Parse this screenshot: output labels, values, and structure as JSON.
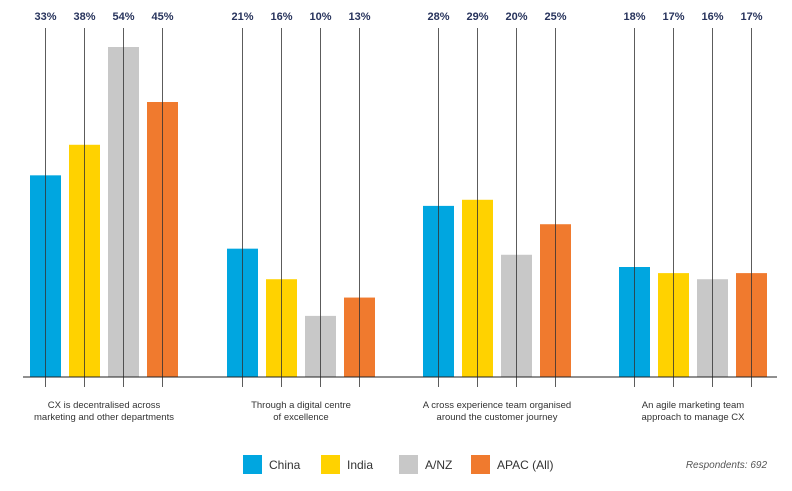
{
  "chart_data": {
    "type": "bar",
    "categories": [
      [
        "CX is decentralised across",
        "marketing and other departments"
      ],
      [
        "Through a digital centre",
        "of excellence"
      ],
      [
        "A cross experience team organised",
        "around the customer journey"
      ],
      [
        "An agile marketing team",
        "approach to manage CX"
      ]
    ],
    "series": [
      {
        "name": "China",
        "color": "#00a6e0",
        "values": [
          33,
          21,
          28,
          18
        ]
      },
      {
        "name": "India",
        "color": "#ffd200",
        "values": [
          38,
          16,
          29,
          17
        ]
      },
      {
        "name": "A/NZ",
        "color": "#c8c8c8",
        "values": [
          54,
          10,
          20,
          16
        ]
      },
      {
        "name": "APAC (All)",
        "color": "#f07a2e",
        "values": [
          45,
          13,
          25,
          17
        ]
      }
    ],
    "value_suffix": "%",
    "ylim": [
      0,
      54
    ],
    "grid": false,
    "legend_position": "bottom-center",
    "note": "Respondents: 692"
  }
}
